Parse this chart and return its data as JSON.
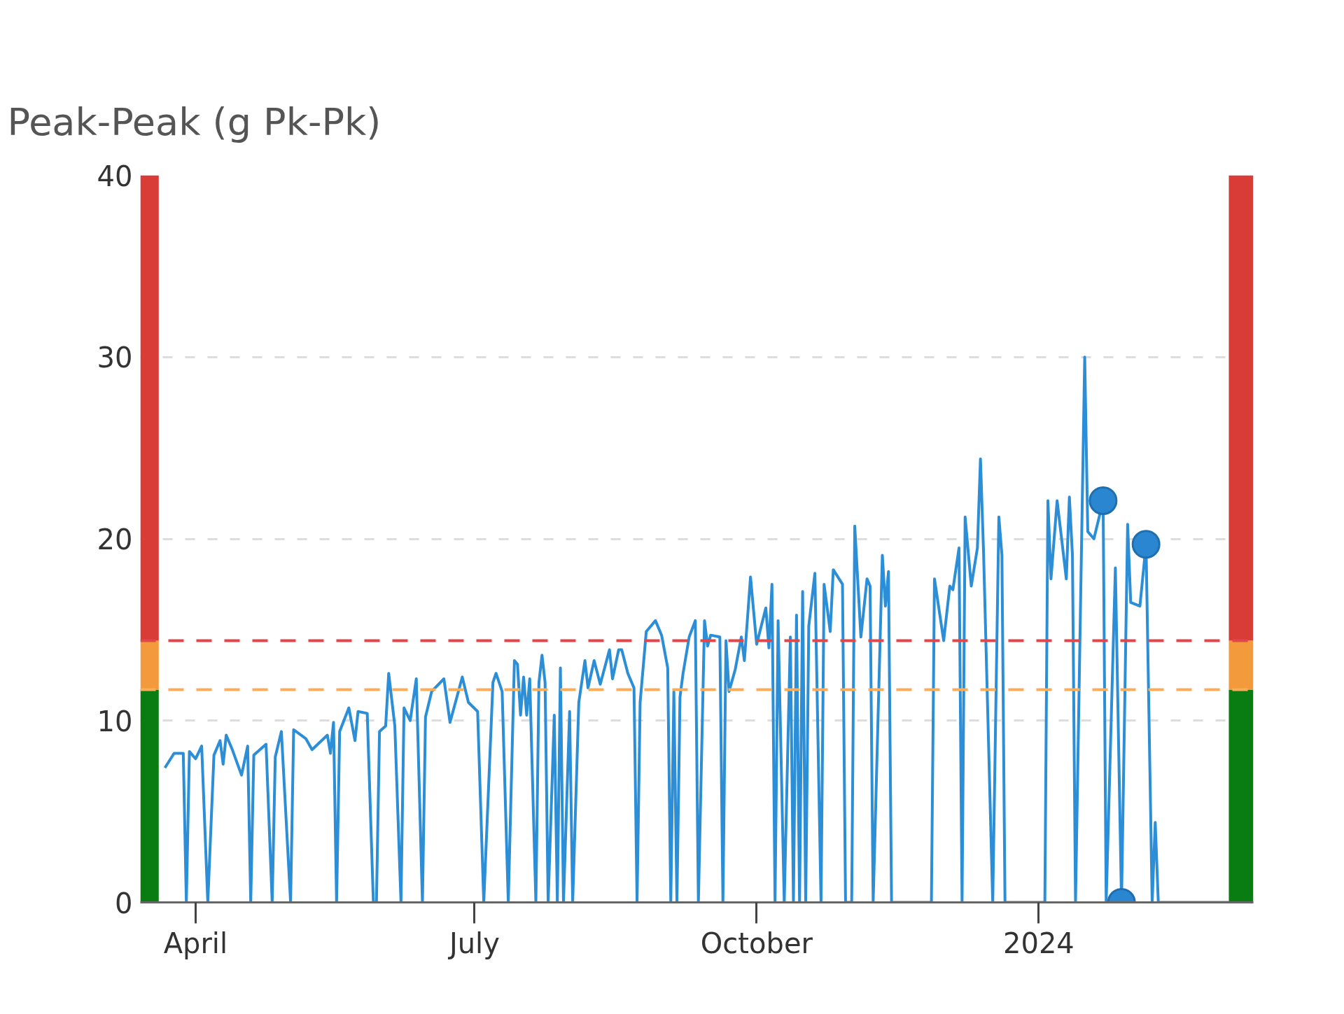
{
  "chart_data": {
    "type": "line",
    "title": "Peak-Peak (g Pk-Pk)",
    "x": [
      "2023-03-22",
      "2023-03-25",
      "2023-03-28",
      "2023-03-29",
      "2023-03-30",
      "2023-04-01",
      "2023-04-03",
      "2023-04-05",
      "2023-04-07",
      "2023-04-09",
      "2023-04-10",
      "2023-04-11",
      "2023-04-13",
      "2023-04-16",
      "2023-04-18",
      "2023-04-19",
      "2023-04-20",
      "2023-04-24",
      "2023-04-26",
      "2023-04-27",
      "2023-04-29",
      "2023-05-02",
      "2023-05-03",
      "2023-05-07",
      "2023-05-09",
      "2023-05-14",
      "2023-05-15",
      "2023-05-16",
      "2023-05-17",
      "2023-05-18",
      "2023-05-21",
      "2023-05-23",
      "2023-05-24",
      "2023-05-27",
      "2023-05-29",
      "2023-05-30",
      "2023-05-31",
      "2023-06-02",
      "2023-06-03",
      "2023-06-05",
      "2023-06-07",
      "2023-06-08",
      "2023-06-10",
      "2023-06-12",
      "2023-06-14",
      "2023-06-15",
      "2023-06-17",
      "2023-06-21",
      "2023-06-23",
      "2023-06-27",
      "2023-06-29",
      "2023-07-02",
      "2023-07-04",
      "2023-07-07",
      "2023-07-08",
      "2023-07-10",
      "2023-07-12",
      "2023-07-14",
      "2023-07-15",
      "2023-07-16",
      "2023-07-17",
      "2023-07-18",
      "2023-07-19",
      "2023-07-21",
      "2023-07-22",
      "2023-07-23",
      "2023-07-24",
      "2023-07-25",
      "2023-07-27",
      "2023-07-28",
      "2023-07-29",
      "2023-07-30",
      "2023-08-01",
      "2023-08-02",
      "2023-08-04",
      "2023-08-06",
      "2023-08-07",
      "2023-08-09",
      "2023-08-11",
      "2023-08-14",
      "2023-08-15",
      "2023-08-17",
      "2023-08-18",
      "2023-08-20",
      "2023-08-22",
      "2023-08-23",
      "2023-08-24",
      "2023-08-26",
      "2023-08-29",
      "2023-08-31",
      "2023-09-02",
      "2023-09-03",
      "2023-09-04",
      "2023-09-05",
      "2023-09-06",
      "2023-09-07",
      "2023-09-09",
      "2023-09-11",
      "2023-09-12",
      "2023-09-14",
      "2023-09-15",
      "2023-09-16",
      "2023-09-19",
      "2023-09-20",
      "2023-09-21",
      "2023-09-22",
      "2023-09-24",
      "2023-09-26",
      "2023-09-27",
      "2023-09-29",
      "2023-10-01",
      "2023-10-04",
      "2023-10-05",
      "2023-10-06",
      "2023-10-07",
      "2023-10-08",
      "2023-10-10",
      "2023-10-12",
      "2023-10-13",
      "2023-10-14",
      "2023-10-15",
      "2023-10-16",
      "2023-10-17",
      "2023-10-18",
      "2023-10-20",
      "2023-10-22",
      "2023-10-23",
      "2023-10-25",
      "2023-10-26",
      "2023-10-29",
      "2023-10-30",
      "2023-11-01",
      "2023-11-02",
      "2023-11-04",
      "2023-11-06",
      "2023-11-07",
      "2023-11-08",
      "2023-11-11",
      "2023-11-12",
      "2023-11-13",
      "2023-11-14",
      "2023-11-27",
      "2023-11-28",
      "2023-12-01",
      "2023-12-03",
      "2023-12-04",
      "2023-12-06",
      "2023-12-07",
      "2023-12-08",
      "2023-12-10",
      "2023-12-12",
      "2023-12-13",
      "2023-12-14",
      "2023-12-17",
      "2023-12-19",
      "2023-12-20",
      "2023-12-21",
      "2024-01-03",
      "2024-01-04",
      "2024-01-05",
      "2024-01-07",
      "2024-01-10",
      "2024-01-11",
      "2024-01-12",
      "2024-01-13",
      "2024-01-16",
      "2024-01-17",
      "2024-01-19",
      "2024-01-22",
      "2024-01-23",
      "2024-01-26",
      "2024-01-28",
      "2024-01-30",
      "2024-01-31",
      "2024-02-03",
      "2024-02-05",
      "2024-02-07",
      "2024-02-08",
      "2024-02-09",
      "2024-03-03"
    ],
    "series": [
      {
        "color": "#2b8ed6",
        "values": [
          7.4,
          8.2,
          8.2,
          0,
          8.3,
          7.9,
          8.6,
          0,
          8.1,
          8.9,
          7.6,
          9.2,
          8.4,
          7.0,
          8.6,
          0,
          8.1,
          8.7,
          0,
          8.0,
          9.4,
          0,
          9.5,
          9.0,
          8.4,
          9.2,
          8.2,
          9.9,
          0,
          9.4,
          10.7,
          8.9,
          10.5,
          10.4,
          0,
          0,
          9.4,
          9.7,
          12.6,
          9.7,
          0,
          10.7,
          10.0,
          12.3,
          0,
          10.2,
          11.6,
          12.3,
          9.9,
          12.4,
          11.0,
          10.5,
          0,
          12.1,
          12.6,
          11.6,
          0,
          13.3,
          13.1,
          10.3,
          12.4,
          10.3,
          12.3,
          0,
          12.1,
          13.6,
          12.1,
          0,
          10.3,
          0,
          12.9,
          0,
          10.5,
          0,
          11.0,
          13.3,
          11.8,
          13.3,
          12.0,
          13.9,
          12.3,
          13.9,
          13.9,
          12.6,
          11.8,
          0,
          11.0,
          14.9,
          15.5,
          14.7,
          12.9,
          0,
          11.6,
          0,
          11.3,
          12.6,
          14.6,
          15.5,
          0,
          15.5,
          14.1,
          14.7,
          14.6,
          0,
          14.4,
          11.6,
          12.8,
          14.6,
          13.3,
          17.9,
          14.2,
          16.2,
          14.0,
          17.5,
          0,
          15.5,
          0,
          14.6,
          0,
          15.8,
          0,
          17.1,
          0,
          15.2,
          18.1,
          0,
          17.5,
          14.9,
          18.3,
          17.5,
          0,
          0,
          20.7,
          14.6,
          17.8,
          17.4,
          0,
          19.1,
          16.3,
          18.2,
          0,
          0,
          17.8,
          14.4,
          17.4,
          17.2,
          19.5,
          0,
          21.2,
          17.4,
          19.5,
          24.4,
          19.3,
          0,
          21.2,
          19.1,
          0,
          0,
          22.1,
          17.8,
          22.1,
          17.8,
          22.3,
          19.1,
          0,
          30.0,
          20.4,
          20.0,
          22.1,
          0,
          18.4,
          0,
          20.8,
          16.5,
          16.3,
          19.7,
          0,
          4.4,
          0,
          0
        ]
      },
      {
        "type": "scatter",
        "color": "#2a86d1",
        "marker": "circle",
        "x": [
          "2024-01-22",
          "2024-01-28",
          "2024-02-05"
        ],
        "values": [
          22.1,
          0,
          19.7
        ]
      },
      {
        "type": "bar",
        "color": "#0a7d12",
        "x": [
          "2023-03-17",
          "2024-03-07"
        ],
        "values": [
          11.7,
          11.7
        ]
      },
      {
        "type": "bar",
        "color": "#f39a3c",
        "x": [
          "2023-03-17",
          "2024-03-07"
        ],
        "values": [
          2.7,
          2.7
        ]
      },
      {
        "type": "bar",
        "color": "#d93b36",
        "x": [
          "2023-03-17",
          "2024-03-07"
        ],
        "values": [
          25.6,
          25.6
        ]
      }
    ],
    "xlim": [
      "2023-03-14",
      "2024-03-11"
    ],
    "xticks": [
      {
        "value": "2023-04-01",
        "label": "April"
      },
      {
        "value": "2023-07-01",
        "label": "July"
      },
      {
        "value": "2023-10-01",
        "label": "October"
      },
      {
        "value": "2024-01-01",
        "label": "2024"
      }
    ],
    "stacked": true,
    "ylim": [
      0,
      40
    ],
    "yticks": [
      0,
      10,
      20,
      30,
      40
    ],
    "grid": "y",
    "marker": "none",
    "line_style": "solid",
    "ref_lines": [
      {
        "axis": "y",
        "value": 14.4,
        "color": "#e0474a",
        "line_style": "dashed"
      },
      {
        "axis": "y",
        "value": 11.7,
        "color": "#f7ad5a",
        "line_style": "dashed"
      }
    ]
  }
}
